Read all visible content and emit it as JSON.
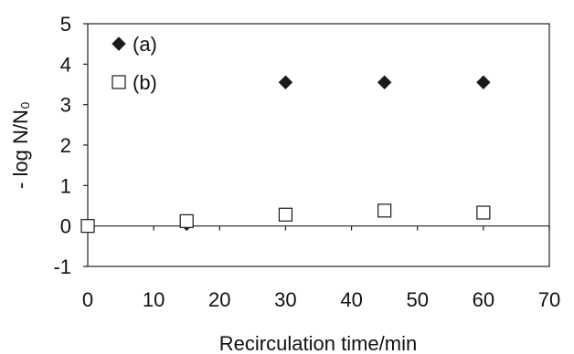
{
  "chart_data": {
    "type": "scatter",
    "xlabel": "Recirculation time/min",
    "ylabel": "- log N/N₀",
    "xlim": [
      0,
      70
    ],
    "ylim": [
      -1,
      5
    ],
    "x_ticks": [
      0,
      10,
      20,
      30,
      40,
      50,
      60,
      70
    ],
    "y_ticks": [
      -1,
      0,
      1,
      2,
      3,
      4,
      5
    ],
    "grid": false,
    "legend_position": "top-left",
    "series": [
      {
        "name": "(a)",
        "marker": "filled-diamond",
        "color": "#1a1a1a",
        "x": [
          0,
          15,
          30,
          45,
          60
        ],
        "y": [
          0,
          0.05,
          3.55,
          3.55,
          3.55
        ]
      },
      {
        "name": "(b)",
        "marker": "open-square",
        "color": "#1a1a1a",
        "x": [
          0,
          15,
          30,
          45,
          60
        ],
        "y": [
          0,
          0.12,
          0.28,
          0.38,
          0.33
        ]
      }
    ]
  }
}
